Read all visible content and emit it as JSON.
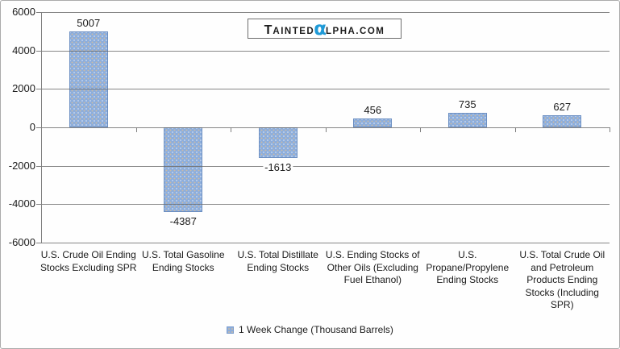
{
  "brand": {
    "t": "T",
    "ainted": "AINTED",
    "alpha": "α",
    "lphacom": "LPHA.COM"
  },
  "legend": {
    "label": "1 Week Change (Thousand Barrels)"
  },
  "chart_data": {
    "type": "bar",
    "title": "",
    "xlabel": "",
    "ylabel": "",
    "categories": [
      "U.S. Crude Oil Ending Stocks Excluding SPR",
      "U.S. Total Gasoline Ending Stocks",
      "U.S. Total Distillate Ending Stocks",
      "U.S. Ending Stocks of Other Oils (Excluding Fuel Ethanol)",
      "U.S. Propane/Propylene Ending Stocks",
      "U.S. Total Crude Oil and Petroleum Products Ending Stocks (Including SPR)"
    ],
    "category_lines": [
      [
        "U.S. Crude Oil Ending",
        "Stocks Excluding SPR"
      ],
      [
        "U.S. Total Gasoline",
        "Ending Stocks"
      ],
      [
        "U.S. Total Distillate",
        "Ending Stocks"
      ],
      [
        "U.S. Ending Stocks of",
        "Other Oils (Excluding",
        "Fuel Ethanol)"
      ],
      [
        "U.S.",
        "Propane/Propylene",
        "Ending Stocks"
      ],
      [
        "U.S. Total Crude Oil",
        "and Petroleum",
        "Products Ending",
        "Stocks (Including",
        "SPR)"
      ]
    ],
    "series": [
      {
        "name": "1 Week Change (Thousand Barrels)",
        "values": [
          5007,
          -4387,
          -1613,
          456,
          735,
          627
        ]
      }
    ],
    "values": [
      5007,
      -4387,
      -1613,
      456,
      735,
      627
    ],
    "data_labels": [
      "5007",
      "-4387",
      "-1613",
      "456",
      "735",
      "627"
    ],
    "ylim": [
      -6000,
      6000
    ],
    "yticks": [
      6000,
      4000,
      2000,
      0,
      -2000,
      -4000,
      -6000
    ],
    "grid": true,
    "legend_position": "bottom"
  },
  "colors": {
    "bar_fill": "#8DAEDC",
    "bar_border": "#6C8FC2",
    "gridline": "#696969",
    "axis": "#7F7F7F",
    "text": "#1C1C1C",
    "alpha_blue": "#1F9AD7",
    "background": "#FEFEFE"
  }
}
